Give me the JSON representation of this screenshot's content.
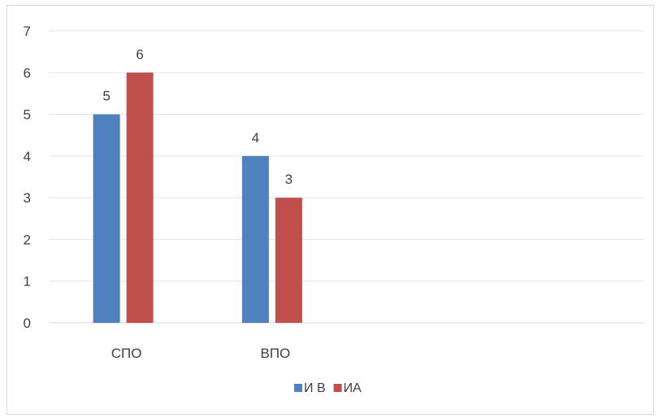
{
  "chart_data": {
    "type": "bar",
    "categories": [
      "СПО",
      "ВПО",
      "",
      ""
    ],
    "series": [
      {
        "name": "И В",
        "values": [
          5,
          4,
          null,
          null
        ],
        "color": "#4f81bd"
      },
      {
        "name": "ИА",
        "values": [
          6,
          3,
          null,
          null
        ],
        "color": "#c0504d"
      }
    ],
    "y_ticks": [
      "0",
      "1",
      "2",
      "3",
      "4",
      "5",
      "6",
      "7"
    ],
    "ylim": [
      0,
      7
    ],
    "grid": true,
    "data_labels": true,
    "legend_position": "bottom"
  }
}
